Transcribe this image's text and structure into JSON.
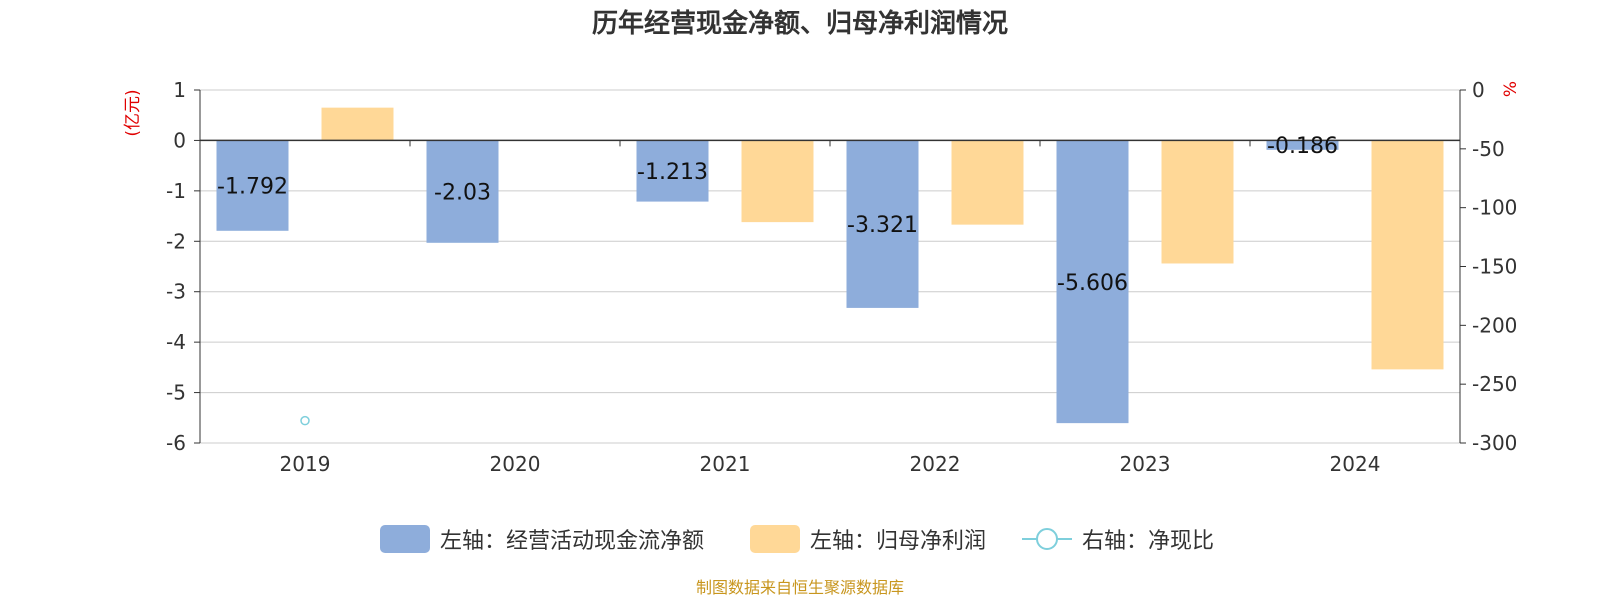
{
  "chart_data": {
    "type": "bar",
    "title": "历年经营现金净额、归母净利润情况",
    "categories": [
      "2019",
      "2020",
      "2021",
      "2022",
      "2023",
      "2024"
    ],
    "left_axis": {
      "unit": "(亿元)",
      "ylim": [
        -6,
        1
      ],
      "ticks": [
        "1",
        "0",
        "-1",
        "-2",
        "-3",
        "-4",
        "-5",
        "-6"
      ]
    },
    "right_axis": {
      "unit": "%",
      "ylim": [
        -300,
        0
      ],
      "ticks": [
        "0",
        "-50",
        "-100",
        "-150",
        "-200",
        "-250",
        "-300"
      ]
    },
    "series": [
      {
        "name": "左轴：经营活动现金流净额",
        "axis": "left",
        "type": "bar",
        "color": "#8eaddb",
        "values": [
          -1.792,
          -2.03,
          -1.213,
          -3.321,
          -5.606,
          -0.186
        ],
        "labels": [
          "-1.792",
          "-2.03",
          "-1.213",
          "-3.321",
          "-5.606",
          "-0.186"
        ]
      },
      {
        "name": "左轴：归母净利润",
        "axis": "left",
        "type": "bar",
        "color": "#ffd897",
        "values": [
          0.65,
          null,
          -1.62,
          -1.67,
          -2.44,
          -4.54
        ]
      },
      {
        "name": "右轴：净现比",
        "axis": "right",
        "type": "line",
        "color": "#7ecfdc",
        "values": [
          -281,
          null,
          null,
          null,
          null,
          null
        ]
      }
    ],
    "grid": true,
    "legend_position": "bottom"
  },
  "footer": {
    "source": "制图数据来自恒生聚源数据库"
  }
}
